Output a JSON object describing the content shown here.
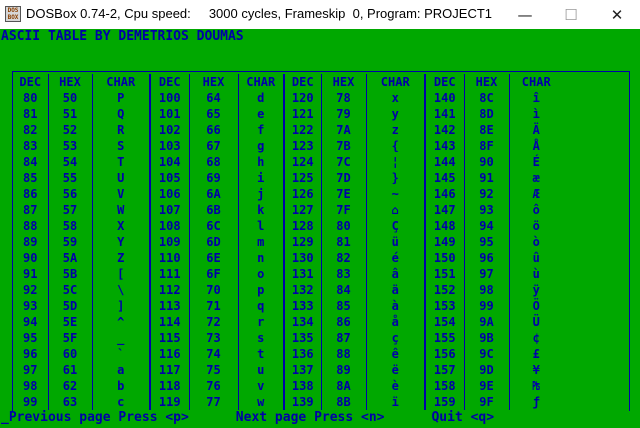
{
  "window": {
    "icon_text": [
      "DOS",
      "BOX"
    ],
    "title": "DOSBox 0.74-2, Cpu speed:     3000 cycles, Frameskip  0, Program: PROJECT1",
    "minimize_glyph": "—",
    "maximize_glyph": "☐",
    "close_glyph": "✕"
  },
  "screen": {
    "heading": "ASCII TABLE BY DEMETRIOS DOUMAS",
    "footer": "_Previous page Press <p>      Next page Press <n>      Quit <q>",
    "columns": [
      "DEC",
      "HEX",
      "CHAR"
    ],
    "groups": [
      {
        "rows": [
          [
            "80",
            "50",
            "P"
          ],
          [
            "81",
            "51",
            "Q"
          ],
          [
            "82",
            "52",
            "R"
          ],
          [
            "83",
            "53",
            "S"
          ],
          [
            "84",
            "54",
            "T"
          ],
          [
            "85",
            "55",
            "U"
          ],
          [
            "86",
            "56",
            "V"
          ],
          [
            "87",
            "57",
            "W"
          ],
          [
            "88",
            "58",
            "X"
          ],
          [
            "89",
            "59",
            "Y"
          ],
          [
            "90",
            "5A",
            "Z"
          ],
          [
            "91",
            "5B",
            "["
          ],
          [
            "92",
            "5C",
            "\\"
          ],
          [
            "93",
            "5D",
            "]"
          ],
          [
            "94",
            "5E",
            "^"
          ],
          [
            "95",
            "5F",
            "_"
          ],
          [
            "96",
            "60",
            "`"
          ],
          [
            "97",
            "61",
            "a"
          ],
          [
            "98",
            "62",
            "b"
          ],
          [
            "99",
            "63",
            "c"
          ]
        ]
      },
      {
        "rows": [
          [
            "100",
            "64",
            "d"
          ],
          [
            "101",
            "65",
            "e"
          ],
          [
            "102",
            "66",
            "f"
          ],
          [
            "103",
            "67",
            "g"
          ],
          [
            "104",
            "68",
            "h"
          ],
          [
            "105",
            "69",
            "i"
          ],
          [
            "106",
            "6A",
            "j"
          ],
          [
            "107",
            "6B",
            "k"
          ],
          [
            "108",
            "6C",
            "l"
          ],
          [
            "109",
            "6D",
            "m"
          ],
          [
            "110",
            "6E",
            "n"
          ],
          [
            "111",
            "6F",
            "o"
          ],
          [
            "112",
            "70",
            "p"
          ],
          [
            "113",
            "71",
            "q"
          ],
          [
            "114",
            "72",
            "r"
          ],
          [
            "115",
            "73",
            "s"
          ],
          [
            "116",
            "74",
            "t"
          ],
          [
            "117",
            "75",
            "u"
          ],
          [
            "118",
            "76",
            "v"
          ],
          [
            "119",
            "77",
            "w"
          ]
        ]
      },
      {
        "rows": [
          [
            "120",
            "78",
            "x"
          ],
          [
            "121",
            "79",
            "y"
          ],
          [
            "122",
            "7A",
            "z"
          ],
          [
            "123",
            "7B",
            "{"
          ],
          [
            "124",
            "7C",
            "¦"
          ],
          [
            "125",
            "7D",
            "}"
          ],
          [
            "126",
            "7E",
            "~"
          ],
          [
            "127",
            "7F",
            "⌂"
          ],
          [
            "128",
            "80",
            "Ç"
          ],
          [
            "129",
            "81",
            "ü"
          ],
          [
            "130",
            "82",
            "é"
          ],
          [
            "131",
            "83",
            "â"
          ],
          [
            "132",
            "84",
            "ä"
          ],
          [
            "133",
            "85",
            "à"
          ],
          [
            "134",
            "86",
            "å"
          ],
          [
            "135",
            "87",
            "ç"
          ],
          [
            "136",
            "88",
            "ê"
          ],
          [
            "137",
            "89",
            "ë"
          ],
          [
            "138",
            "8A",
            "è"
          ],
          [
            "139",
            "8B",
            "ï"
          ]
        ]
      },
      {
        "rows": [
          [
            "140",
            "8C",
            "î"
          ],
          [
            "141",
            "8D",
            "ì"
          ],
          [
            "142",
            "8E",
            "Ä"
          ],
          [
            "143",
            "8F",
            "Å"
          ],
          [
            "144",
            "90",
            "É"
          ],
          [
            "145",
            "91",
            "æ"
          ],
          [
            "146",
            "92",
            "Æ"
          ],
          [
            "147",
            "93",
            "ô"
          ],
          [
            "148",
            "94",
            "ö"
          ],
          [
            "149",
            "95",
            "ò"
          ],
          [
            "150",
            "96",
            "û"
          ],
          [
            "151",
            "97",
            "ù"
          ],
          [
            "152",
            "98",
            "ÿ"
          ],
          [
            "153",
            "99",
            "Ö"
          ],
          [
            "154",
            "9A",
            "Ü"
          ],
          [
            "155",
            "9B",
            "¢"
          ],
          [
            "156",
            "9C",
            "£"
          ],
          [
            "157",
            "9D",
            "¥"
          ],
          [
            "158",
            "9E",
            "₧"
          ],
          [
            "159",
            "9F",
            "ƒ"
          ]
        ]
      }
    ]
  }
}
